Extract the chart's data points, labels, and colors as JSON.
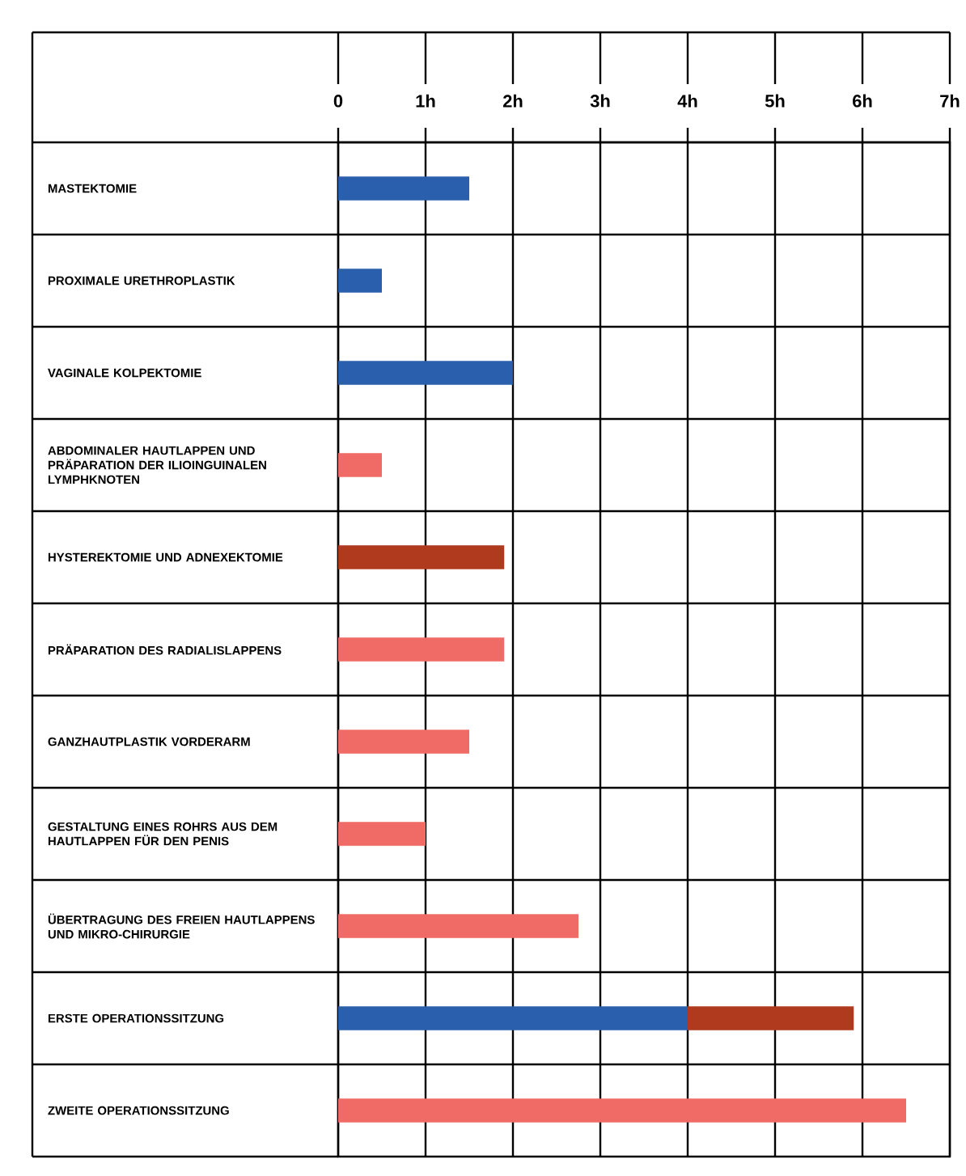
{
  "chart_data": {
    "type": "bar",
    "orientation": "horizontal",
    "stacked": true,
    "categories": [
      "MASTEKTOMIE",
      "PROXIMALE URETHROPLASTIK",
      "VAGINALE KOLPEKTOMIE",
      "ABDOMINALER HAUTLAPPEN UND PRÄPARATION DER ILIOINGUINALEN LYMPHKNOTEN",
      "HYSTEREKTOMIE UND ADNEXEKTOMIE",
      "PRÄPARATION DES RADIALISLAPPENS",
      "GANZHAUTPLASTIK VORDERARM",
      "GESTALTUNG EINES ROHRS AUS DEM HAUTLAPPEN FÜR DEN PENIS",
      "ÜBERTRAGUNG DES FREIEN HAUTLAPPENS UND MIKRO-CHIRURGIE",
      "ERSTE OPERATIONSSITZUNG",
      "ZWEITE OPERATIONSSITZUNG"
    ],
    "series": [
      {
        "values": [
          1.5,
          0.5,
          2.0,
          0.5,
          1.9,
          1.9,
          1.5,
          1.0,
          2.75,
          4.0,
          6.5
        ],
        "colors": [
          "#2a5fad",
          "#2a5fad",
          "#2a5fad",
          "#f06b65",
          "#b03a1e",
          "#f06b65",
          "#f06b65",
          "#f06b65",
          "#f06b65",
          "#2a5fad",
          "#f06b65"
        ]
      },
      {
        "values": [
          null,
          null,
          null,
          null,
          null,
          null,
          null,
          null,
          null,
          1.9,
          null
        ],
        "color": "#b03a1e"
      }
    ],
    "xlim": [
      0,
      7
    ],
    "xticks": [
      0,
      {
        "value": 1,
        "label": "1h"
      },
      {
        "value": 2,
        "label": "2h"
      },
      {
        "value": 3,
        "label": "3h"
      },
      {
        "value": 4,
        "label": "4h"
      },
      {
        "value": 5,
        "label": "5h"
      },
      {
        "value": 6,
        "label": "6h"
      },
      {
        "value": 7,
        "label": "7h"
      }
    ],
    "grid": "x"
  }
}
